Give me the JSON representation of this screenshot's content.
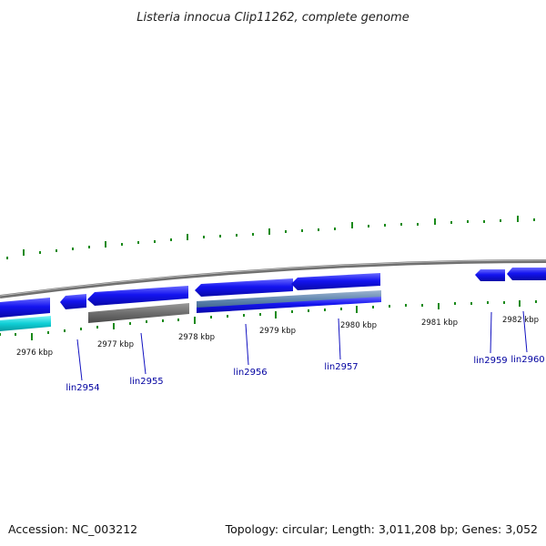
{
  "title": "Listeria innocua Clip11262, complete genome",
  "footer": {
    "accession": "Accession: NC_003212",
    "topology": "Topology: circular; Length: 3,011,208 bp; Genes: 3,052"
  },
  "kbp_labels": [
    "2976 kbp",
    "2977 kbp",
    "2978 kbp",
    "2979 kbp",
    "2980 kbp",
    "2981 kbp",
    "2982 kbp"
  ],
  "gene_labels": [
    "lin2954",
    "lin2955",
    "lin2956",
    "lin2957",
    "lin2959",
    "lin2960"
  ],
  "colors": {
    "backbone": "#8a8a8a",
    "cds_forward": "#1010e8",
    "cds_dark": "#0a0aa0",
    "cds_reverse": "#00c8d0",
    "rna_gray": "#707070",
    "tick": "#1a8a1a",
    "gene_label": "#0000a0"
  }
}
